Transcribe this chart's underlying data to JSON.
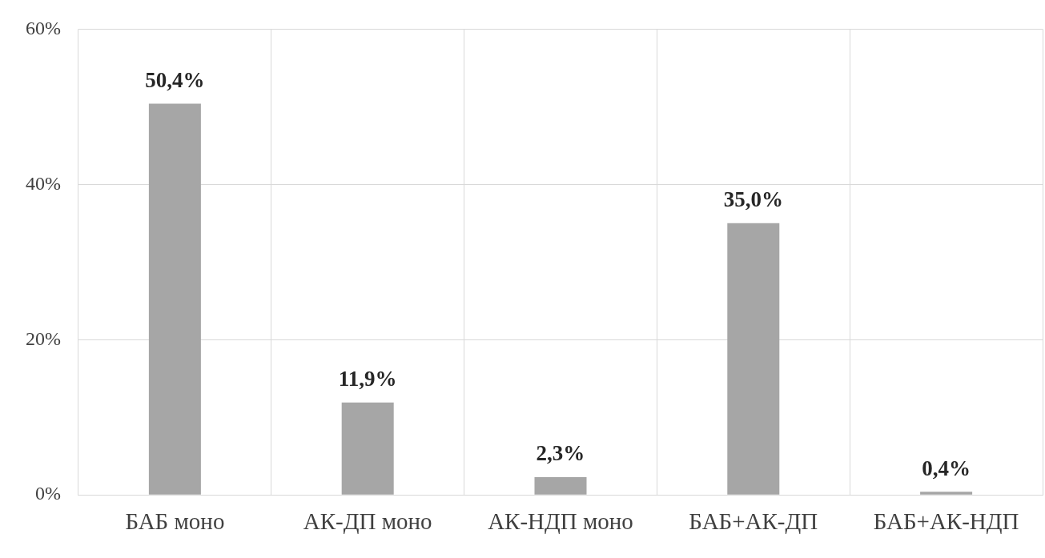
{
  "chart_data": {
    "type": "bar",
    "categories": [
      "БАБ моно",
      "АК-ДП моно",
      "АК-НДП моно",
      "БАБ+АК-ДП",
      "БАБ+АК-НДП"
    ],
    "values": [
      50.4,
      11.9,
      2.3,
      35.0,
      0.4
    ],
    "color": "#a6a6a6",
    "value_labels": [
      "50,4%",
      "11,9%",
      "2,3%",
      "35,0%",
      "0,4%"
    ],
    "ylim": [
      0,
      60
    ],
    "yticks": [
      {
        "value": 0,
        "label": "0%"
      },
      {
        "value": 20,
        "label": "20%"
      },
      {
        "value": 40,
        "label": "40%"
      },
      {
        "value": 60,
        "label": "60%"
      }
    ],
    "grid": true,
    "legend": false
  }
}
